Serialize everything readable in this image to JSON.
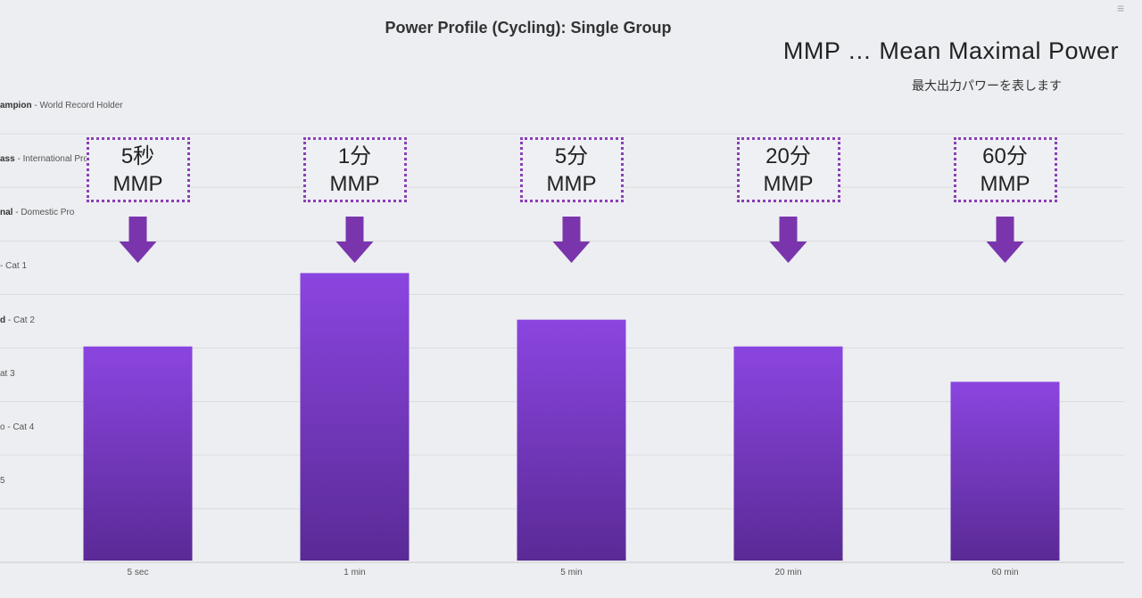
{
  "chart_data": {
    "type": "bar",
    "title": "Power Profile (Cycling): Single Group",
    "categories": [
      "5 sec",
      "1 min",
      "5 min",
      "20 min",
      "60 min"
    ],
    "values": [
      4.03,
      5.4,
      4.53,
      4.03,
      3.37
    ],
    "ylim": [
      0,
      9
    ],
    "grid": true,
    "bar_color_top": "#8b45e0",
    "bar_color_bottom": "#5a2a96",
    "y_tick_labels": [
      {
        "value": 8.5,
        "prefix": "ampion",
        "desc": "World Record Holder"
      },
      {
        "value": 7.5,
        "prefix": "ass",
        "desc": "International Pro"
      },
      {
        "value": 6.5,
        "prefix": "nal",
        "desc": "Domestic Pro"
      },
      {
        "value": 5.5,
        "prefix": "",
        "desc": "- Cat 1"
      },
      {
        "value": 4.5,
        "prefix": "d",
        "desc": "Cat 2"
      },
      {
        "value": 3.5,
        "prefix": "",
        "desc": "at 3"
      },
      {
        "value": 2.5,
        "prefix": "",
        "desc": "o - Cat 4"
      },
      {
        "value": 1.5,
        "prefix": "",
        "desc": "5"
      }
    ]
  },
  "annotation": {
    "legend_main": "MMP … Mean Maximal Power",
    "legend_sub": "最大出力パワーを表します",
    "boxes": [
      {
        "top": "5秒",
        "bottom": "MMP"
      },
      {
        "top": "1分",
        "bottom": "MMP"
      },
      {
        "top": "5分",
        "bottom": "MMP"
      },
      {
        "top": "20分",
        "bottom": "MMP"
      },
      {
        "top": "60分",
        "bottom": "MMP"
      }
    ],
    "arrow_color": "#7a35ad"
  },
  "menu_icon": "hamburger-menu-icon"
}
